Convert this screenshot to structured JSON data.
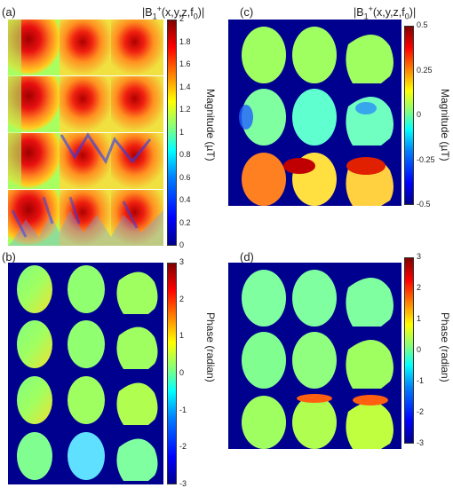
{
  "panels": {
    "a": {
      "label": "(a)"
    },
    "b": {
      "label": "(b)"
    },
    "c": {
      "label": "(c)"
    },
    "d": {
      "label": "(d)"
    }
  },
  "titles": {
    "a": {
      "pre": "|B",
      "sub1": "1",
      "sup": "+",
      "mid": "(x,y,z,f",
      "sub2": "0",
      "post": ")|"
    },
    "c": {
      "pre": "|B",
      "sub1": "1",
      "sup": "+",
      "mid": "(x,y,z,f",
      "sub2": "0",
      "post": ")|"
    }
  },
  "colorbars": {
    "a": {
      "label": "Magnitude (µT)",
      "ticks": [
        "2",
        "1.8",
        "1.6",
        "1.4",
        "1.2",
        "1",
        "0.8",
        "0.6",
        "0.4",
        "0.2",
        "0"
      ]
    },
    "b": {
      "label": "Phase (radian)",
      "ticks": [
        "3",
        "2",
        "1",
        "0",
        "-1",
        "-2",
        "-3"
      ]
    },
    "c": {
      "label": "Magnitude (µT)",
      "ticks": [
        "0.5",
        "0.25",
        "0",
        "-0.25",
        "-0.5"
      ]
    },
    "d": {
      "label": "Phase (radian)",
      "ticks": [
        "3",
        "2",
        "1",
        "0",
        "-1",
        "-2",
        "-3"
      ]
    }
  },
  "colors": {
    "background": "#00008f",
    "colormap": [
      "#00008f",
      "#0000ff",
      "#0080ff",
      "#00ffff",
      "#80ff80",
      "#ffff00",
      "#ff8000",
      "#ff0000",
      "#800000"
    ]
  }
}
